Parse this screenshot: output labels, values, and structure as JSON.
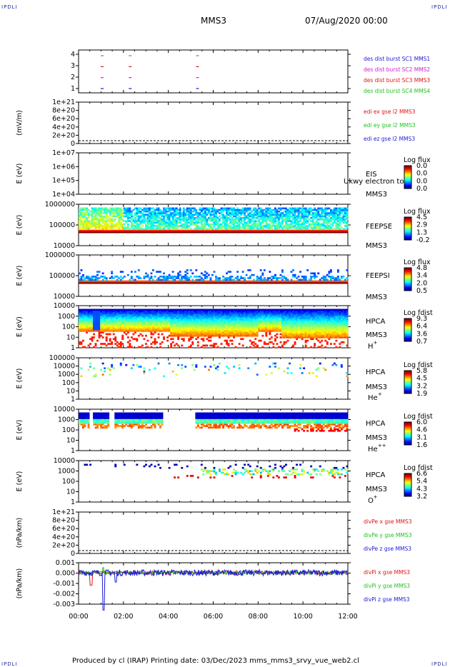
{
  "corners": {
    "tl": "IPDLI",
    "tr": "IPDLI",
    "bl": "IPDLI",
    "br": "IPDLI"
  },
  "header": {
    "mission": "MMS3",
    "date": "07/Aug/2020 00:00"
  },
  "footer": {
    "text": "Produced by cl (IRAP)   Printing date: 03/Dec/2023   mms_mms3_srvy_vue_web2.cl"
  },
  "colors": {
    "mms1": "#1a1ad6",
    "mms2": "#d21ad2",
    "mms3": "#e01414",
    "mms4": "#1fc21f"
  },
  "chart_data": [
    {
      "type": "scatter",
      "name": "burst",
      "yticks": [
        "1",
        "2",
        "3",
        "4"
      ],
      "series": [
        {
          "name": "des dist burst SC1 MMS1",
          "color": "#1a1ad6"
        },
        {
          "name": "des dist burst SC2 MMS2",
          "color": "#d21ad2"
        },
        {
          "name": "des dist burst SC3 MMS3",
          "color": "#e01414"
        },
        {
          "name": "des dist burst SC4 MMS4",
          "color": "#1fc21f"
        }
      ],
      "burst_times_hours": [
        1.05,
        2.3,
        5.3
      ]
    },
    {
      "type": "line",
      "name": "edi",
      "ylabel": "(mV/m)",
      "yticks": [
        "0",
        "2e+20",
        "4e+20",
        "6e+20",
        "8e+20",
        "1e+21"
      ],
      "series": [
        {
          "name": "edi ex gse l2 MMS3",
          "color": "#e01414"
        },
        {
          "name": "edi ey gse l2 MMS3",
          "color": "#1fc21f"
        },
        {
          "name": "edi ez gse l2 MMS3",
          "color": "#1a1ad6"
        }
      ]
    },
    {
      "type": "heatmap",
      "name": "eis",
      "ylabel": "E (eV)",
      "yticks": [
        "1e+04",
        "1e+05",
        "1e+06",
        "1e+07"
      ],
      "labels": [
        "EIS",
        "MMS3"
      ],
      "overlay": "Ukwy electron to",
      "colorbar": {
        "title": "Log flux",
        "ticks": [
          "0.0",
          "0.0",
          "0.0",
          "0.0"
        ]
      }
    },
    {
      "type": "heatmap",
      "name": "feepse",
      "ylabel": "E (eV)",
      "yticks": [
        "10000",
        "100000",
        "1000000"
      ],
      "labels": [
        "FEEPSE",
        "MMS3"
      ],
      "colorbar": {
        "title": "Log flux",
        "ticks": [
          "4.5",
          "2.9",
          "1.3",
          "-0.2"
        ]
      }
    },
    {
      "type": "heatmap",
      "name": "feepsi",
      "ylabel": "E (eV)",
      "yticks": [
        "10000",
        "100000",
        "1000000"
      ],
      "labels": [
        "FEEPSI",
        "MMS3"
      ],
      "colorbar": {
        "title": "Log flux",
        "ticks": [
          "4.8",
          "3.4",
          "2.0",
          "0.5"
        ]
      }
    },
    {
      "type": "heatmap",
      "name": "hpca-h",
      "ylabel": "E (eV)",
      "yticks": [
        "1",
        "10",
        "100",
        "1000",
        "10000"
      ],
      "labels": [
        "HPCA",
        "MMS3"
      ],
      "species": "H",
      "charge": "+",
      "colorbar": {
        "title": "Log fdist",
        "ticks": [
          "9.3",
          "6.4",
          "3.6",
          "0.7"
        ]
      }
    },
    {
      "type": "heatmap",
      "name": "hpca-he",
      "ylabel": "E (eV)",
      "yticks": [
        "1",
        "10",
        "100",
        "1000",
        "10000",
        "100000"
      ],
      "labels": [
        "HPCA",
        "MMS3"
      ],
      "species": "He",
      "charge": "+",
      "colorbar": {
        "title": "Log fdist",
        "ticks": [
          "5.8",
          "4.5",
          "3.2",
          "1.9"
        ]
      }
    },
    {
      "type": "heatmap",
      "name": "hpca-hepp",
      "ylabel": "E (eV)",
      "yticks": [
        "1",
        "10",
        "100",
        "1000",
        "10000"
      ],
      "labels": [
        "HPCA",
        "MMS3"
      ],
      "species": "He",
      "charge": "++",
      "colorbar": {
        "title": "Log fdist",
        "ticks": [
          "6.0",
          "4.6",
          "3.1",
          "1.6"
        ]
      }
    },
    {
      "type": "heatmap",
      "name": "hpca-o",
      "ylabel": "E (eV)",
      "yticks": [
        "1",
        "10",
        "100",
        "1000",
        "10000"
      ],
      "labels": [
        "HPCA",
        "MMS3"
      ],
      "species": "O",
      "charge": "+",
      "colorbar": {
        "title": "Log fdist",
        "ticks": [
          "6.6",
          "5.4",
          "4.3",
          "3.2"
        ]
      }
    },
    {
      "type": "line",
      "name": "divpe",
      "ylabel": "(nPa/km)",
      "yticks": [
        "0",
        "2e+20",
        "4e+20",
        "6e+20",
        "8e+20",
        "1e+21"
      ],
      "series": [
        {
          "name": "divPe x gse MMS3",
          "color": "#e01414"
        },
        {
          "name": "divPe y gse MMS3",
          "color": "#1fc21f"
        },
        {
          "name": "divPe z gse MMS3",
          "color": "#1a1ad6"
        }
      ]
    },
    {
      "type": "line",
      "name": "divpi",
      "ylabel": "(nPa/km)",
      "yticks": [
        "-0.003",
        "-0.002",
        "-0.001",
        "0.000",
        "0.001"
      ],
      "series": [
        {
          "name": "divPi x gse MMS3",
          "color": "#e01414"
        },
        {
          "name": "divPi y gse MMS3",
          "color": "#1fc21f"
        },
        {
          "name": "divPi z gse MMS3",
          "color": "#1a1ad6"
        }
      ]
    }
  ],
  "xaxis": {
    "ticks": [
      "00:00",
      "02:00",
      "04:00",
      "06:00",
      "08:00",
      "10:00",
      "12:00"
    ],
    "range_hours": [
      0,
      12
    ]
  }
}
